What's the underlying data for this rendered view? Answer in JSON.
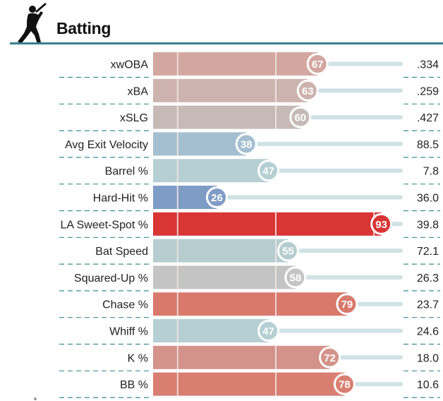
{
  "header": {
    "title": "Batting",
    "icon": "batter-silhouette-icon"
  },
  "colors": {
    "rule": "#3a7f8c",
    "dash": "#3a8c96",
    "track": "#cfe2e5",
    "reference_lines": "#f4e6e4"
  },
  "chart_data": {
    "type": "bar",
    "orientation": "horizontal",
    "title": "Batting",
    "xlim": [
      0,
      100
    ],
    "reference_lines": [
      10,
      50,
      90
    ],
    "metrics": [
      {
        "label": "xwOBA",
        "percentile": 67,
        "value": ".334",
        "color": "#d3a7a1"
      },
      {
        "label": "xBA",
        "percentile": 63,
        "value": ".259",
        "color": "#cdb3ae"
      },
      {
        "label": "xSLG",
        "percentile": 60,
        "value": ".427",
        "color": "#c6bab7"
      },
      {
        "label": "Avg Exit Velocity",
        "percentile": 38,
        "value": "88.5",
        "color": "#a4bfd0"
      },
      {
        "label": "Barrel %",
        "percentile": 47,
        "value": "7.8",
        "color": "#b5cfd3"
      },
      {
        "label": "Hard-Hit %",
        "percentile": 26,
        "value": "36.0",
        "color": "#7f9cc6"
      },
      {
        "label": "LA Sweet-Spot %",
        "percentile": 93,
        "value": "39.8",
        "color": "#d93535"
      },
      {
        "label": "Bat Speed",
        "percentile": 55,
        "value": "72.1",
        "color": "#b6cdd0"
      },
      {
        "label": "Squared-Up %",
        "percentile": 58,
        "value": "26.3",
        "color": "#c3c4c3"
      },
      {
        "label": "Chase %",
        "percentile": 79,
        "value": "23.7",
        "color": "#d8796b"
      },
      {
        "label": "Whiff %",
        "percentile": 47,
        "value": "24.6",
        "color": "#b5cfd3"
      },
      {
        "label": "K %",
        "percentile": 72,
        "value": "18.0",
        "color": "#d3938a"
      },
      {
        "label": "BB %",
        "percentile": 78,
        "value": "10.6",
        "color": "#d97f71"
      }
    ]
  }
}
